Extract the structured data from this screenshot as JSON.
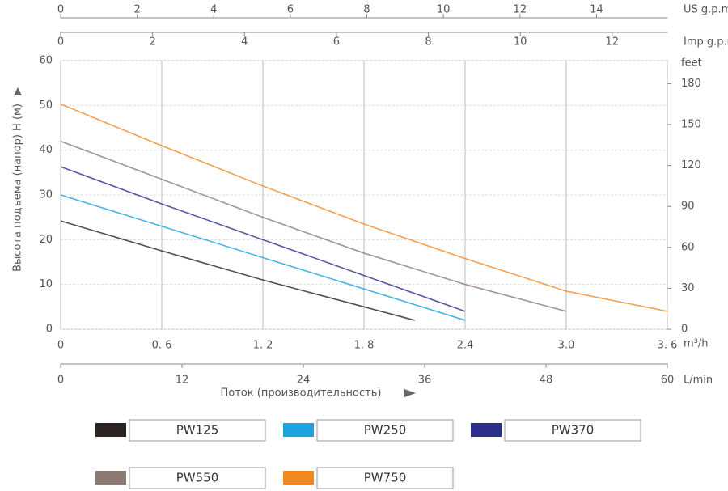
{
  "chart_data": {
    "type": "line",
    "y_label": "Высота подъема (напор) Н (м)",
    "x_label": "Поток (производительность)",
    "x_unit": "m³/h",
    "xlim": [
      0,
      3.6
    ],
    "xticks": [
      0,
      {
        "value": 0.6,
        "label": "0. 6"
      },
      {
        "value": 1.2,
        "label": "1. 2"
      },
      {
        "value": 1.8,
        "label": "1. 8"
      },
      2.4,
      {
        "value": 3,
        "label": "3.0"
      },
      {
        "value": 3.6,
        "label": "3. 6"
      }
    ],
    "ylim": [
      0,
      60
    ],
    "yticks": [
      0,
      10,
      20,
      30,
      40,
      50,
      60
    ],
    "y2_unit": "feet",
    "y2lim": [
      0,
      196.85
    ],
    "y2ticks": [
      0,
      30,
      60,
      90,
      120,
      150,
      180
    ],
    "grid": true,
    "extra_x_axes": [
      {
        "unit": "US g.p.m",
        "position": "top",
        "lim": [
          0,
          15.85
        ],
        "ticks": [
          0,
          2,
          4,
          6,
          8,
          10,
          12,
          14
        ]
      },
      {
        "unit": "Imp g.p.m",
        "position": "top",
        "lim": [
          0,
          13.2
        ],
        "ticks": [
          0,
          2,
          4,
          6,
          8,
          10,
          12
        ]
      },
      {
        "unit": "L/min",
        "position": "bottom",
        "lim": [
          0,
          60
        ],
        "ticks": [
          0,
          12,
          24,
          36,
          48,
          60
        ]
      }
    ],
    "series": [
      {
        "name": "PW125",
        "color": "#2b2421",
        "x": [
          0,
          0.6,
          1.2,
          1.8,
          2.1
        ],
        "values": [
          24.2,
          17.5,
          11,
          5,
          2
        ]
      },
      {
        "name": "PW250",
        "color": "#1ea3e0",
        "x": [
          0,
          0.6,
          1.2,
          1.8,
          2.4
        ],
        "values": [
          30,
          23,
          16,
          9,
          2
        ]
      },
      {
        "name": "PW370",
        "color": "#2b2f8a",
        "x": [
          0,
          0.6,
          1.2,
          1.8,
          2.4
        ],
        "values": [
          36.3,
          28,
          20,
          12,
          4
        ]
      },
      {
        "name": "PW550",
        "color": "#8c7b72",
        "x": [
          0,
          0.6,
          1.2,
          1.8,
          2.4,
          3.0
        ],
        "values": [
          42,
          33.5,
          25,
          17,
          10,
          4
        ]
      },
      {
        "name": "PW750",
        "color": "#f08a20",
        "x": [
          0,
          0.6,
          1.2,
          1.8,
          2.4,
          3.0,
          3.6
        ],
        "values": [
          50.3,
          41,
          32,
          23.5,
          15.8,
          8.5,
          4
        ]
      }
    ]
  }
}
